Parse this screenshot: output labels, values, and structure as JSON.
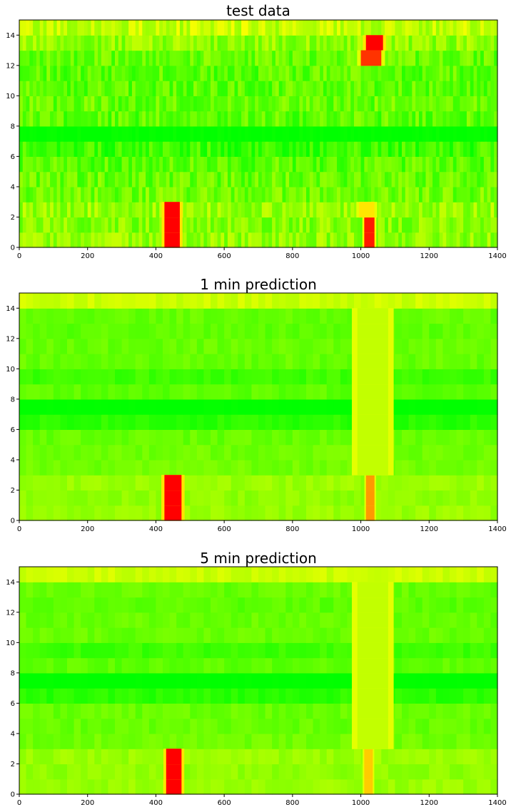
{
  "chart_data": [
    {
      "type": "heatmap",
      "title": "test data",
      "xlim": [
        0,
        1400
      ],
      "ylim": [
        0,
        15
      ],
      "xticks": [
        0,
        200,
        400,
        600,
        800,
        1000,
        1200,
        1400
      ],
      "yticks": [
        0,
        2,
        4,
        6,
        8,
        10,
        12,
        14
      ],
      "colormap": [
        "#ff0000",
        "#ffff00",
        "#00ff00"
      ],
      "color_scale": "0 = red (congested), 0.5 = yellow, 1 = green (free flow)",
      "rows": 15,
      "row_base_levels": [
        0.72,
        0.74,
        0.7,
        0.78,
        0.8,
        0.82,
        0.88,
        1.0,
        0.82,
        0.8,
        0.82,
        0.82,
        0.8,
        0.72,
        0.62
      ],
      "hot_spots": [
        {
          "x_range": [
            425,
            470
          ],
          "rows": [
            0,
            1,
            2
          ],
          "level": 0.0
        },
        {
          "x_range": [
            1010,
            1040
          ],
          "rows": [
            0,
            1
          ],
          "level": 0.05
        },
        {
          "x_range": [
            995,
            1040
          ],
          "rows": [
            2
          ],
          "level": 0.45
        },
        {
          "x_range": [
            1015,
            1065
          ],
          "rows": [
            13
          ],
          "level": 0.0
        },
        {
          "x_range": [
            1000,
            1060
          ],
          "rows": [
            12
          ],
          "level": 0.1
        }
      ]
    },
    {
      "type": "heatmap",
      "title": "1 min prediction",
      "xlim": [
        0,
        1400
      ],
      "ylim": [
        0,
        15
      ],
      "xticks": [
        0,
        200,
        400,
        600,
        800,
        1000,
        1200,
        1400
      ],
      "yticks": [
        0,
        2,
        4,
        6,
        8,
        10,
        12,
        14
      ],
      "colormap": [
        "#ff0000",
        "#ffff00",
        "#00ff00"
      ],
      "rows": 15,
      "row_base_levels": [
        0.7,
        0.72,
        0.7,
        0.78,
        0.78,
        0.8,
        0.92,
        1.0,
        0.82,
        0.88,
        0.8,
        0.8,
        0.82,
        0.8,
        0.6
      ],
      "hot_spots": [
        {
          "x_range": [
            425,
            475
          ],
          "rows": [
            0,
            1,
            2
          ],
          "level": 0.0
        },
        {
          "x_range": [
            1015,
            1040
          ],
          "rows": [
            0,
            1,
            2
          ],
          "level": 0.3
        },
        {
          "x_range": [
            990,
            1080
          ],
          "rows": [
            3,
            4,
            5,
            6,
            7,
            8,
            9,
            10,
            11,
            12,
            13
          ],
          "level": 0.62
        }
      ]
    },
    {
      "type": "heatmap",
      "title": "5 min prediction",
      "xlim": [
        0,
        1400
      ],
      "ylim": [
        0,
        15
      ],
      "xticks": [
        0,
        200,
        400,
        600,
        800,
        1000,
        1200,
        1400
      ],
      "yticks": [
        0,
        2,
        4,
        6,
        8,
        10,
        12,
        14
      ],
      "colormap": [
        "#ff0000",
        "#ffff00",
        "#00ff00"
      ],
      "rows": 15,
      "row_base_levels": [
        0.7,
        0.72,
        0.7,
        0.78,
        0.8,
        0.8,
        0.92,
        1.0,
        0.82,
        0.88,
        0.8,
        0.8,
        0.82,
        0.8,
        0.6
      ],
      "hot_spots": [
        {
          "x_range": [
            430,
            475
          ],
          "rows": [
            0,
            1,
            2
          ],
          "level": 0.0
        },
        {
          "x_range": [
            1010,
            1035
          ],
          "rows": [
            0,
            1,
            2
          ],
          "level": 0.4
        },
        {
          "x_range": [
            990,
            1080
          ],
          "rows": [
            3,
            4,
            5,
            6,
            7,
            8,
            9,
            10,
            11,
            12,
            13
          ],
          "level": 0.62
        }
      ]
    }
  ]
}
